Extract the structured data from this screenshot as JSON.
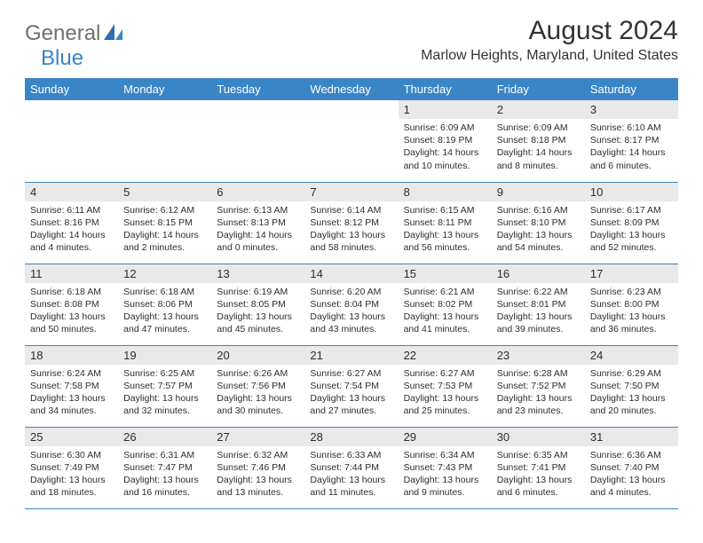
{
  "logo": {
    "text1": "General",
    "text2": "Blue"
  },
  "title": "August 2024",
  "location": "Marlow Heights, Maryland, United States",
  "colors": {
    "header_bg": "#3a85c6",
    "header_text": "#ffffff",
    "daynum_bg": "#e9e9e9",
    "text": "#2d2d2d",
    "row_border": "#3a85c6",
    "logo_gray": "#6f6f6f",
    "logo_blue": "#3a85c6"
  },
  "weekdays": [
    "Sunday",
    "Monday",
    "Tuesday",
    "Wednesday",
    "Thursday",
    "Friday",
    "Saturday"
  ],
  "weeks": [
    [
      null,
      null,
      null,
      null,
      {
        "n": "1",
        "sr": "6:09 AM",
        "ss": "8:19 PM",
        "dl": "14 hours and 10 minutes."
      },
      {
        "n": "2",
        "sr": "6:09 AM",
        "ss": "8:18 PM",
        "dl": "14 hours and 8 minutes."
      },
      {
        "n": "3",
        "sr": "6:10 AM",
        "ss": "8:17 PM",
        "dl": "14 hours and 6 minutes."
      }
    ],
    [
      {
        "n": "4",
        "sr": "6:11 AM",
        "ss": "8:16 PM",
        "dl": "14 hours and 4 minutes."
      },
      {
        "n": "5",
        "sr": "6:12 AM",
        "ss": "8:15 PM",
        "dl": "14 hours and 2 minutes."
      },
      {
        "n": "6",
        "sr": "6:13 AM",
        "ss": "8:13 PM",
        "dl": "14 hours and 0 minutes."
      },
      {
        "n": "7",
        "sr": "6:14 AM",
        "ss": "8:12 PM",
        "dl": "13 hours and 58 minutes."
      },
      {
        "n": "8",
        "sr": "6:15 AM",
        "ss": "8:11 PM",
        "dl": "13 hours and 56 minutes."
      },
      {
        "n": "9",
        "sr": "6:16 AM",
        "ss": "8:10 PM",
        "dl": "13 hours and 54 minutes."
      },
      {
        "n": "10",
        "sr": "6:17 AM",
        "ss": "8:09 PM",
        "dl": "13 hours and 52 minutes."
      }
    ],
    [
      {
        "n": "11",
        "sr": "6:18 AM",
        "ss": "8:08 PM",
        "dl": "13 hours and 50 minutes."
      },
      {
        "n": "12",
        "sr": "6:18 AM",
        "ss": "8:06 PM",
        "dl": "13 hours and 47 minutes."
      },
      {
        "n": "13",
        "sr": "6:19 AM",
        "ss": "8:05 PM",
        "dl": "13 hours and 45 minutes."
      },
      {
        "n": "14",
        "sr": "6:20 AM",
        "ss": "8:04 PM",
        "dl": "13 hours and 43 minutes."
      },
      {
        "n": "15",
        "sr": "6:21 AM",
        "ss": "8:02 PM",
        "dl": "13 hours and 41 minutes."
      },
      {
        "n": "16",
        "sr": "6:22 AM",
        "ss": "8:01 PM",
        "dl": "13 hours and 39 minutes."
      },
      {
        "n": "17",
        "sr": "6:23 AM",
        "ss": "8:00 PM",
        "dl": "13 hours and 36 minutes."
      }
    ],
    [
      {
        "n": "18",
        "sr": "6:24 AM",
        "ss": "7:58 PM",
        "dl": "13 hours and 34 minutes."
      },
      {
        "n": "19",
        "sr": "6:25 AM",
        "ss": "7:57 PM",
        "dl": "13 hours and 32 minutes."
      },
      {
        "n": "20",
        "sr": "6:26 AM",
        "ss": "7:56 PM",
        "dl": "13 hours and 30 minutes."
      },
      {
        "n": "21",
        "sr": "6:27 AM",
        "ss": "7:54 PM",
        "dl": "13 hours and 27 minutes."
      },
      {
        "n": "22",
        "sr": "6:27 AM",
        "ss": "7:53 PM",
        "dl": "13 hours and 25 minutes."
      },
      {
        "n": "23",
        "sr": "6:28 AM",
        "ss": "7:52 PM",
        "dl": "13 hours and 23 minutes."
      },
      {
        "n": "24",
        "sr": "6:29 AM",
        "ss": "7:50 PM",
        "dl": "13 hours and 20 minutes."
      }
    ],
    [
      {
        "n": "25",
        "sr": "6:30 AM",
        "ss": "7:49 PM",
        "dl": "13 hours and 18 minutes."
      },
      {
        "n": "26",
        "sr": "6:31 AM",
        "ss": "7:47 PM",
        "dl": "13 hours and 16 minutes."
      },
      {
        "n": "27",
        "sr": "6:32 AM",
        "ss": "7:46 PM",
        "dl": "13 hours and 13 minutes."
      },
      {
        "n": "28",
        "sr": "6:33 AM",
        "ss": "7:44 PM",
        "dl": "13 hours and 11 minutes."
      },
      {
        "n": "29",
        "sr": "6:34 AM",
        "ss": "7:43 PM",
        "dl": "13 hours and 9 minutes."
      },
      {
        "n": "30",
        "sr": "6:35 AM",
        "ss": "7:41 PM",
        "dl": "13 hours and 6 minutes."
      },
      {
        "n": "31",
        "sr": "6:36 AM",
        "ss": "7:40 PM",
        "dl": "13 hours and 4 minutes."
      }
    ]
  ],
  "labels": {
    "sunrise": "Sunrise:",
    "sunset": "Sunset:",
    "daylight": "Daylight:"
  }
}
